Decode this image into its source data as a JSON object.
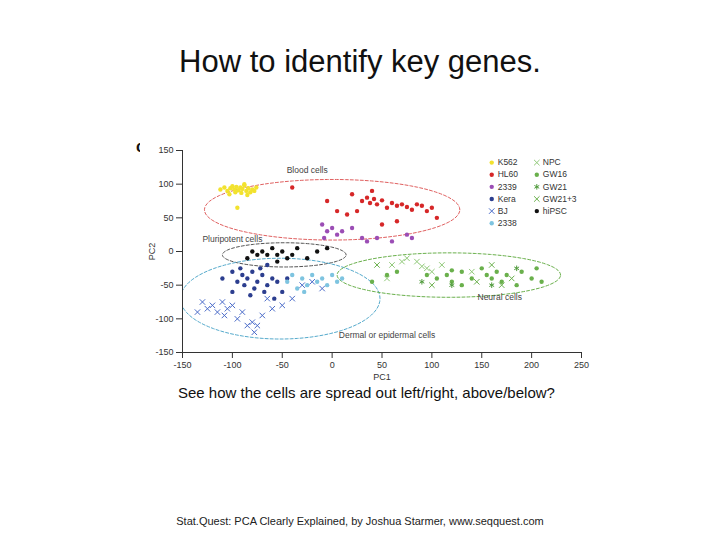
{
  "chart_data": {
    "type": "scatter",
    "title": "How to identify key genes.",
    "panel_label": "c",
    "caption": "See how the cells are spread out left/right, above/below?",
    "source": "Stat.Quest: PCA Clearly Explained, by Joshua Starmer, www.seqquest.com",
    "x_label": "PC1",
    "y_label": "PC2",
    "xlim": [
      -150,
      250
    ],
    "ylim": [
      -150,
      150
    ],
    "xticks": [
      -150,
      -100,
      -50,
      0,
      50,
      100,
      150,
      200,
      250
    ],
    "yticks": [
      -150,
      -100,
      -50,
      0,
      50,
      100,
      150
    ],
    "legend": "top-right",
    "groups": [
      {
        "name": "Blood cells",
        "color": "#e06060",
        "center": [
          0,
          62
        ],
        "radii": [
          128,
          45
        ],
        "label_at": [
          -25,
          121
        ]
      },
      {
        "name": "Pluripotent cells",
        "color": "#555555",
        "center": [
          -48,
          -5
        ],
        "radii": [
          62,
          18
        ],
        "label_at": [
          -100,
          18
        ]
      },
      {
        "name": "Dermal or epidermal cells",
        "color": "#55aacc",
        "center": [
          -52,
          -70
        ],
        "radii": [
          100,
          60
        ],
        "label_at": [
          55,
          -125
        ]
      },
      {
        "name": "Neural cells",
        "color": "#6ab04c",
        "center": [
          117,
          -35
        ],
        "radii": [
          112,
          33
        ],
        "label_at": [
          168,
          -68
        ]
      }
    ],
    "series": [
      {
        "name": "K562",
        "color": "#f2e22e",
        "marker": "circle",
        "values": [
          [
            -112,
            92
          ],
          [
            -108,
            95
          ],
          [
            -105,
            90
          ],
          [
            -102,
            94
          ],
          [
            -100,
            97
          ],
          [
            -98,
            92
          ],
          [
            -96,
            96
          ],
          [
            -94,
            91
          ],
          [
            -92,
            95
          ],
          [
            -90,
            93
          ],
          [
            -88,
            98
          ],
          [
            -86,
            90
          ],
          [
            -84,
            94
          ],
          [
            -82,
            88
          ],
          [
            -80,
            92
          ],
          [
            -78,
            90
          ],
          [
            -103,
            85
          ],
          [
            -97,
            88
          ],
          [
            -91,
            87
          ],
          [
            -85,
            84
          ],
          [
            -95,
            65
          ],
          [
            -88,
            100
          ],
          [
            -76,
            95
          ]
        ]
      },
      {
        "name": "HL60",
        "color": "#d62728",
        "marker": "circle",
        "values": [
          [
            -40,
            95
          ],
          [
            -5,
            75
          ],
          [
            5,
            60
          ],
          [
            20,
            85
          ],
          [
            25,
            60
          ],
          [
            30,
            75
          ],
          [
            35,
            80
          ],
          [
            38,
            72
          ],
          [
            42,
            78
          ],
          [
            45,
            70
          ],
          [
            50,
            76
          ],
          [
            55,
            65
          ],
          [
            60,
            72
          ],
          [
            65,
            68
          ],
          [
            70,
            70
          ],
          [
            75,
            66
          ],
          [
            80,
            62
          ],
          [
            85,
            70
          ],
          [
            90,
            68
          ],
          [
            95,
            60
          ],
          [
            100,
            65
          ],
          [
            105,
            50
          ],
          [
            15,
            55
          ],
          [
            50,
            40
          ],
          [
            65,
            45
          ],
          [
            40,
            90
          ]
        ]
      },
      {
        "name": "2339",
        "color": "#9b4db5",
        "marker": "circle",
        "values": [
          [
            -10,
            40
          ],
          [
            -5,
            30
          ],
          [
            0,
            35
          ],
          [
            5,
            25
          ],
          [
            10,
            30
          ],
          [
            -8,
            20
          ],
          [
            30,
            20
          ],
          [
            35,
            15
          ],
          [
            45,
            20
          ],
          [
            60,
            15
          ],
          [
            75,
            25
          ],
          [
            80,
            20
          ],
          [
            20,
            35
          ]
        ]
      },
      {
        "name": "Kera",
        "color": "#2c3e8f",
        "marker": "circle",
        "values": [
          [
            -110,
            -40
          ],
          [
            -100,
            -30
          ],
          [
            -95,
            -45
          ],
          [
            -90,
            -35
          ],
          [
            -88,
            -50
          ],
          [
            -85,
            -40
          ],
          [
            -80,
            -30
          ],
          [
            -78,
            -55
          ],
          [
            -75,
            -45
          ],
          [
            -70,
            -35
          ],
          [
            -68,
            -60
          ],
          [
            -65,
            -50
          ],
          [
            -60,
            -40
          ],
          [
            -58,
            -70
          ],
          [
            -55,
            -45
          ],
          [
            -50,
            -60
          ],
          [
            -92,
            -25
          ],
          [
            -82,
            -65
          ],
          [
            -72,
            -25
          ],
          [
            -45,
            -40
          ],
          [
            -100,
            -60
          ],
          [
            -65,
            -20
          ]
        ]
      },
      {
        "name": "BJ",
        "color": "#4a6bc9",
        "marker": "times",
        "values": [
          [
            -130,
            -75
          ],
          [
            -125,
            -85
          ],
          [
            -120,
            -80
          ],
          [
            -115,
            -90
          ],
          [
            -110,
            -75
          ],
          [
            -108,
            -95
          ],
          [
            -105,
            -85
          ],
          [
            -100,
            -80
          ],
          [
            -95,
            -100
          ],
          [
            -90,
            -90
          ],
          [
            -85,
            -110
          ],
          [
            -80,
            -105
          ],
          [
            -75,
            -110
          ],
          [
            -70,
            -95
          ],
          [
            -60,
            -85
          ],
          [
            -50,
            -80
          ],
          [
            -40,
            -70
          ],
          [
            -30,
            -50
          ],
          [
            -20,
            -45
          ],
          [
            -10,
            -55
          ],
          [
            -135,
            -90
          ],
          [
            -78,
            -120
          ],
          [
            -65,
            -70
          ]
        ]
      },
      {
        "name": "2338",
        "color": "#7ec4e0",
        "marker": "circle",
        "values": [
          [
            -45,
            -45
          ],
          [
            -40,
            -35
          ],
          [
            -35,
            -55
          ],
          [
            -30,
            -40
          ],
          [
            -25,
            -50
          ],
          [
            -20,
            -35
          ],
          [
            -15,
            -45
          ],
          [
            -10,
            -40
          ],
          [
            -5,
            -50
          ],
          [
            0,
            -35
          ],
          [
            5,
            -45
          ],
          [
            -28,
            -60
          ],
          [
            10,
            -40
          ]
        ]
      },
      {
        "name": "NPC",
        "color": "#90c978",
        "marker": "times",
        "values": [
          [
            60,
            -20
          ],
          [
            70,
            -15
          ],
          [
            75,
            -10
          ],
          [
            85,
            -15
          ],
          [
            90,
            -22
          ],
          [
            95,
            -25
          ],
          [
            110,
            -20
          ],
          [
            140,
            -30
          ],
          [
            55,
            -40
          ],
          [
            100,
            -30
          ]
        ]
      },
      {
        "name": "GW16",
        "color": "#6ab04c",
        "marker": "circle",
        "values": [
          [
            40,
            -45
          ],
          [
            55,
            -35
          ],
          [
            65,
            -30
          ],
          [
            95,
            -35
          ],
          [
            105,
            -40
          ],
          [
            115,
            -35
          ],
          [
            120,
            -45
          ],
          [
            130,
            -30
          ],
          [
            140,
            -40
          ],
          [
            150,
            -25
          ],
          [
            155,
            -35
          ],
          [
            160,
            -40
          ],
          [
            165,
            -30
          ],
          [
            170,
            -45
          ],
          [
            175,
            -35
          ],
          [
            185,
            -50
          ],
          [
            190,
            -30
          ],
          [
            200,
            -40
          ],
          [
            205,
            -25
          ],
          [
            210,
            -45
          ],
          [
            130,
            -50
          ],
          [
            120,
            -28
          ]
        ]
      },
      {
        "name": "GW21",
        "color": "#4e9a3a",
        "marker": "asterisk",
        "values": [
          [
            90,
            -45
          ],
          [
            120,
            -50
          ],
          [
            160,
            -50
          ],
          [
            185,
            -25
          ]
        ]
      },
      {
        "name": "GW21+3",
        "color": "#6ab04c",
        "marker": "times",
        "values": [
          [
            45,
            -20
          ],
          [
            100,
            -50
          ],
          [
            145,
            -45
          ],
          [
            170,
            -50
          ],
          [
            160,
            -20
          ],
          [
            180,
            -40
          ]
        ]
      },
      {
        "name": "hiPSC",
        "color": "#111111",
        "marker": "circle",
        "values": [
          [
            -85,
            -10
          ],
          [
            -75,
            -5
          ],
          [
            -70,
            0
          ],
          [
            -65,
            -5
          ],
          [
            -60,
            5
          ],
          [
            -55,
            -5
          ],
          [
            -50,
            0
          ],
          [
            -45,
            -10
          ],
          [
            -40,
            -5
          ],
          [
            -35,
            5
          ],
          [
            -25,
            -10
          ],
          [
            -15,
            0
          ],
          [
            -5,
            5
          ],
          [
            -80,
            0
          ],
          [
            -55,
            -15
          ]
        ]
      }
    ]
  }
}
